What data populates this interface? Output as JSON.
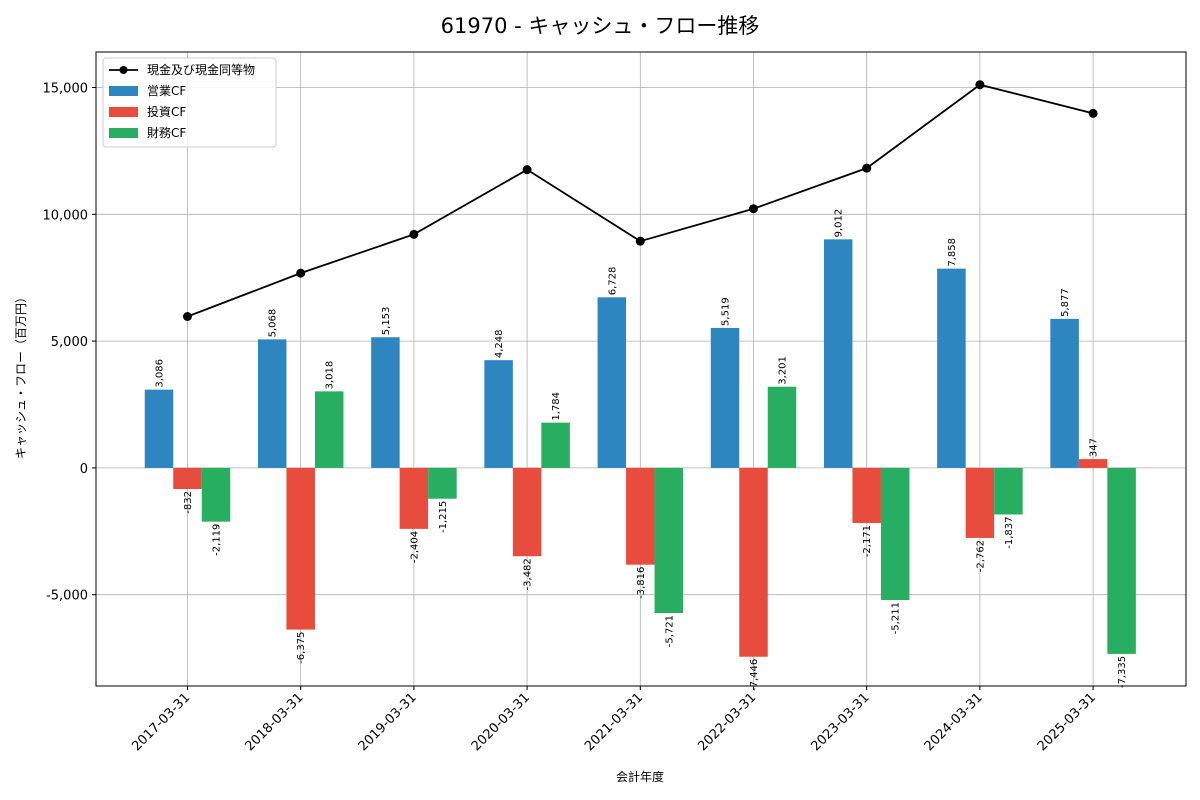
{
  "chart_data": {
    "type": "bar",
    "title": "61970 - キャッシュ・フロー推移",
    "xlabel": "会計年度",
    "ylabel": "キャッシュ・フロー（百万円）",
    "categories": [
      "2017-03-31",
      "2018-03-31",
      "2019-03-31",
      "2020-03-31",
      "2021-03-31",
      "2022-03-31",
      "2023-03-31",
      "2024-03-31",
      "2025-03-31"
    ],
    "ylim": [
      -8600,
      16400
    ],
    "yticks": [
      -5000,
      0,
      5000,
      10000,
      15000
    ],
    "ytick_labels": [
      "-5,000",
      "0",
      "5,000",
      "10,000",
      "15,000"
    ],
    "grid": true,
    "legend_position": "top-left",
    "series": [
      {
        "name": "営業CF",
        "type": "bar",
        "color": "#2e86c1",
        "values": [
          3086,
          5068,
          5153,
          4248,
          6728,
          5519,
          9012,
          7858,
          5877
        ],
        "labels": [
          "3,086",
          "5,068",
          "5,153",
          "4,248",
          "6,728",
          "5,519",
          "9,012",
          "7,858",
          "5,877"
        ]
      },
      {
        "name": "投資CF",
        "type": "bar",
        "color": "#e74c3c",
        "values": [
          -832,
          -6375,
          -2404,
          -3482,
          -3816,
          -7446,
          -2171,
          -2762,
          347
        ],
        "labels": [
          "-832",
          "-6,375",
          "-2,404",
          "-3,482",
          "-3,816",
          "-7,446",
          "-2,171",
          "-2,762",
          "347"
        ]
      },
      {
        "name": "財務CF",
        "type": "bar",
        "color": "#27ae60",
        "values": [
          -2119,
          3018,
          -1215,
          1784,
          -5721,
          3201,
          -5211,
          -1837,
          -7335
        ],
        "labels": [
          "-2,119",
          "3,018",
          "-1,215",
          "1,784",
          "-5,721",
          "3,201",
          "-5,211",
          "-1,837",
          "-7,335"
        ]
      }
    ],
    "line_series": {
      "name": "現金及び現金同等物",
      "type": "line",
      "color": "#000000",
      "values": [
        5970,
        7680,
        9210,
        11760,
        8940,
        10220,
        11820,
        15110,
        13980
      ]
    }
  }
}
